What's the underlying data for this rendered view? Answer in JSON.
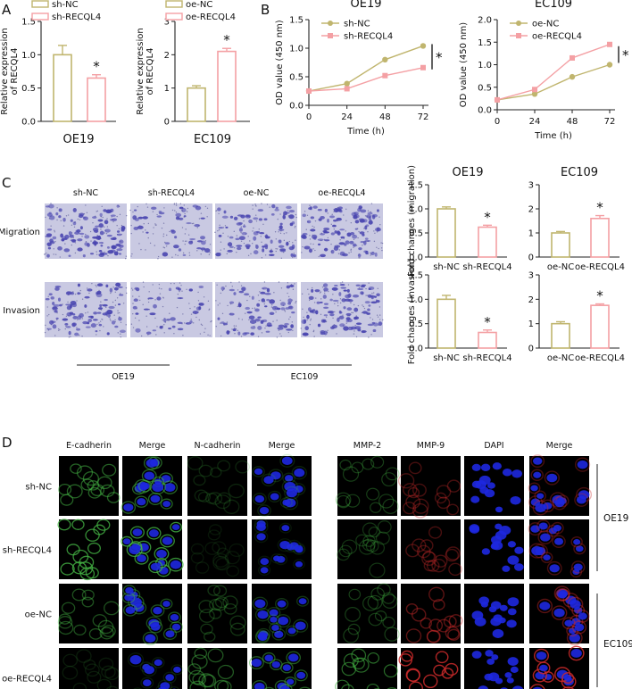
{
  "panel_letters": [
    "A",
    "B",
    "C",
    "D"
  ],
  "colors": {
    "control": "#c0b56e",
    "treat": "#f4a0a4",
    "marker": "#d8a8a8",
    "transwell_bg": "#c9c9e2",
    "transwell_cell": "#4a46b0",
    "fl_green": "#43b243",
    "fl_red": "#cc2a2a",
    "fl_blue": "#1e28e0"
  },
  "chart_data": [
    {
      "id": "A1",
      "type": "bar",
      "title": "OE19",
      "ylabel": "Relative expression of RECQL4",
      "ylim": [
        0,
        1.5
      ],
      "yticks": [
        0.0,
        0.5,
        1.0,
        1.5
      ],
      "legend": [
        "sh-NC",
        "sh-RECQL4"
      ],
      "values": [
        1.0,
        0.65
      ],
      "errors": [
        0.14,
        0.05
      ],
      "significance": "*"
    },
    {
      "id": "A2",
      "type": "bar",
      "title": "EC109",
      "ylabel": "Relative expression of RECQL4",
      "ylim": [
        0,
        3
      ],
      "yticks": [
        0,
        1,
        2,
        3
      ],
      "legend": [
        "oe-NC",
        "oe-RECQL4"
      ],
      "values": [
        1.0,
        2.1
      ],
      "errors": [
        0.07,
        0.09
      ],
      "significance": "*"
    },
    {
      "id": "B1",
      "type": "line",
      "title": "OE19",
      "xlabel": "Time (h)",
      "ylabel": "OD value (450 nm)",
      "x": [
        0,
        24,
        48,
        72
      ],
      "xlim": [
        0,
        72
      ],
      "ylim": [
        0.0,
        1.5
      ],
      "yticks": [
        0.0,
        0.5,
        1.0,
        1.5
      ],
      "series": [
        {
          "name": "sh-NC",
          "values": [
            0.25,
            0.38,
            0.8,
            1.04
          ]
        },
        {
          "name": "sh-RECQL4",
          "values": [
            0.25,
            0.29,
            0.52,
            0.66
          ]
        }
      ],
      "significance": "*"
    },
    {
      "id": "B2",
      "type": "line",
      "title": "EC109",
      "xlabel": "Time (h)",
      "ylabel": "OD value (450 nm)",
      "x": [
        0,
        24,
        48,
        72
      ],
      "xlim": [
        0,
        72
      ],
      "ylim": [
        0.0,
        2.0
      ],
      "yticks": [
        0.0,
        0.5,
        1.0,
        1.5,
        2.0
      ],
      "series": [
        {
          "name": "oe-NC",
          "values": [
            0.22,
            0.35,
            0.73,
            1.0
          ]
        },
        {
          "name": "oe-RECQL4",
          "values": [
            0.22,
            0.45,
            1.15,
            1.45
          ]
        }
      ],
      "significance": "*"
    },
    {
      "id": "C1",
      "type": "bar",
      "title": "OE19",
      "ylabel": "Fold changes (migration)",
      "categories": [
        "sh-NC",
        "sh-RECQL4"
      ],
      "ylim": [
        0,
        1.5
      ],
      "yticks": [
        0.0,
        0.5,
        1.0,
        1.5
      ],
      "values": [
        1.0,
        0.62
      ],
      "errors": [
        0.04,
        0.04
      ],
      "significance": "*"
    },
    {
      "id": "C2",
      "type": "bar",
      "title": "EC109",
      "ylabel": "",
      "categories": [
        "oe-NC",
        "oe-RECQL4"
      ],
      "ylim": [
        0,
        3
      ],
      "yticks": [
        0,
        1,
        2,
        3
      ],
      "values": [
        1.0,
        1.6
      ],
      "errors": [
        0.06,
        0.12
      ],
      "significance": "*"
    },
    {
      "id": "C3",
      "type": "bar",
      "title": "",
      "ylabel": "Fold changes (invasion)",
      "categories": [
        "sh-NC",
        "sh-RECQL4"
      ],
      "ylim": [
        0,
        1.5
      ],
      "yticks": [
        0.0,
        0.5,
        1.0,
        1.5
      ],
      "values": [
        1.0,
        0.32
      ],
      "errors": [
        0.08,
        0.05
      ],
      "significance": "*"
    },
    {
      "id": "C4",
      "type": "bar",
      "title": "",
      "ylabel": "",
      "categories": [
        "oe-NC",
        "oe-RECQL4"
      ],
      "ylim": [
        0,
        3
      ],
      "yticks": [
        0,
        1,
        2,
        3
      ],
      "values": [
        1.0,
        1.75
      ],
      "errors": [
        0.08,
        0.06
      ],
      "significance": "*"
    }
  ],
  "transwell": {
    "columns": [
      "sh-NC",
      "sh-RECQL4",
      "oe-NC",
      "oe-RECQL4"
    ],
    "rows": [
      "Migration",
      "Invasion"
    ],
    "density": [
      [
        0.9,
        0.35,
        0.65,
        0.85
      ],
      [
        0.75,
        0.3,
        0.55,
        0.85
      ]
    ],
    "groups": [
      "OE19",
      "EC109"
    ]
  },
  "fluorescence": {
    "left_columns": [
      "E-cadherin",
      "Merge",
      "N-cadherin",
      "Merge"
    ],
    "right_columns": [
      "MMP-2",
      "MMP-9",
      "DAPI",
      "Merge"
    ],
    "rows": [
      "sh-NC",
      "sh-RECQL4",
      "oe-NC",
      "oe-RECQL4"
    ],
    "groups": [
      "OE19",
      "EC109"
    ]
  }
}
